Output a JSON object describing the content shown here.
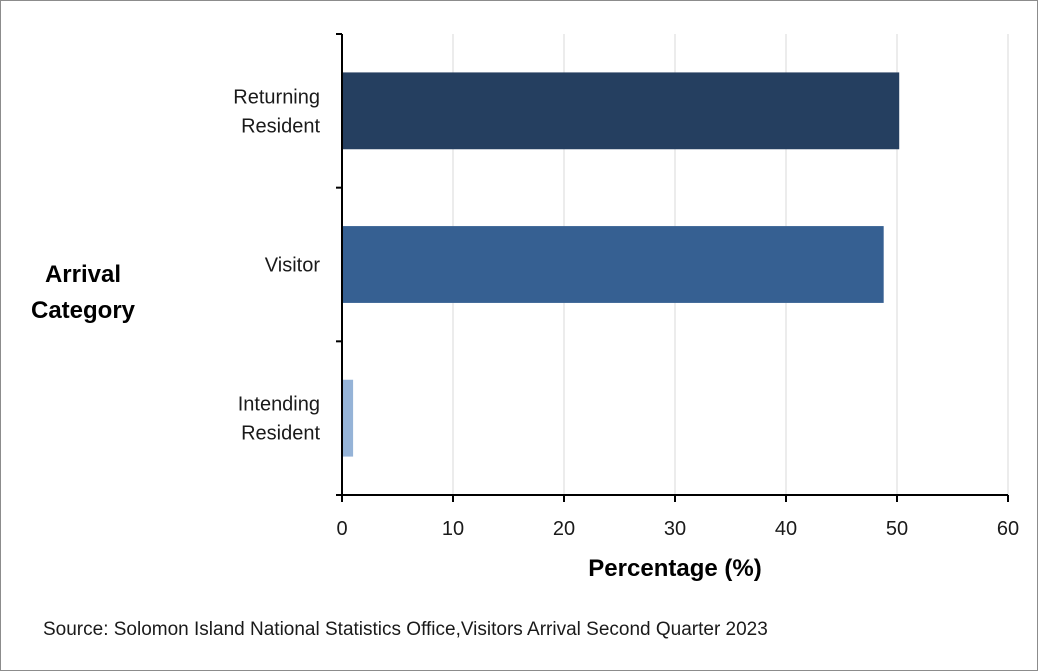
{
  "chart_data": {
    "type": "bar",
    "orientation": "horizontal",
    "categories": [
      "Returning Resident",
      "Visitor",
      "Intending Resident"
    ],
    "category_label_lines": [
      [
        "Returning",
        "Resident"
      ],
      [
        "Visitor"
      ],
      [
        "Intending",
        "Resident"
      ]
    ],
    "values": [
      50.2,
      48.8,
      1.0
    ],
    "colors": [
      "#253f60",
      "#366092",
      "#95b3d7"
    ],
    "xlabel": "Percentage (%)",
    "ylabel_lines": [
      "Arrival",
      "Category"
    ],
    "xlim": [
      0,
      60
    ],
    "xticks": [
      0,
      10,
      20,
      30,
      40,
      50,
      60
    ],
    "grid": "vertical",
    "legend": "none"
  },
  "source": "Source: Solomon Island National Statistics Office,Visitors Arrival Second Quarter 2023"
}
